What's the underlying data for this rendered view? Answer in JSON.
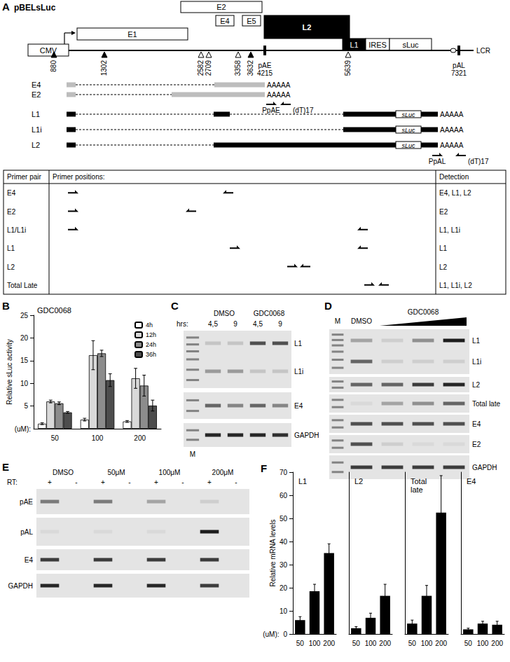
{
  "panel_labels": [
    "A",
    "B",
    "C",
    "D",
    "E",
    "F"
  ],
  "diagram": {
    "title": "pBELsLuc",
    "boxes": [
      "E2",
      "E4",
      "E5",
      "L2",
      "E1",
      "L1",
      "IRES",
      "sLuc",
      "CMV"
    ],
    "end_label": "LCR",
    "sites": [
      {
        "label": "880",
        "kind": "filled"
      },
      {
        "label": "1302",
        "kind": "filled"
      },
      {
        "label": "2582",
        "kind": "open"
      },
      {
        "label": "2709",
        "kind": "open"
      },
      {
        "label": "3358",
        "kind": "open"
      },
      {
        "label": "3632",
        "kind": "filled"
      },
      {
        "name": "pAE",
        "label": "4215",
        "kind": "polyA"
      },
      {
        "label": "5639",
        "kind": "open"
      },
      {
        "name": "pAL",
        "label": "7321",
        "kind": "polyA"
      }
    ],
    "transcripts": [
      {
        "name": "E4",
        "tail": "AAAAA"
      },
      {
        "name": "E2",
        "tail": "AAAAA"
      },
      {
        "name": "L1",
        "tail": "AAAAA",
        "insert": "sLuc"
      },
      {
        "name": "L1i",
        "tail": "AAAAA",
        "insert": "sLuc"
      },
      {
        "name": "L2",
        "tail": "AAAAA",
        "insert": "sLuc"
      }
    ],
    "primers": [
      {
        "labels": [
          "PpAE",
          "(dT)17"
        ]
      },
      {
        "labels": [
          "PpAL",
          "(dT)17"
        ]
      }
    ]
  },
  "primer_table": {
    "header": [
      "Primer pair",
      "Primer positions:",
      "Detection"
    ],
    "rows": [
      {
        "pair": "E4",
        "detection": "E4, L1, L2"
      },
      {
        "pair": "E2",
        "detection": "E2"
      },
      {
        "pair": "L1/L1i",
        "detection": "L1, L1i"
      },
      {
        "pair": "L1",
        "detection": "L1"
      },
      {
        "pair": "L2",
        "detection": "L2"
      },
      {
        "pair": "Total Late",
        "detection": "L1, L1i, L2"
      }
    ]
  },
  "gels": {
    "C": {
      "marker": "M",
      "axis_label": "hrs:",
      "groups": [
        {
          "label": "DMSO",
          "lanes": [
            "4,5",
            "9"
          ]
        },
        {
          "label": "GDC0068",
          "lanes": [
            "4,5",
            "9"
          ]
        }
      ],
      "blocks": [
        {
          "labels": [
            "L1",
            "L1i"
          ],
          "bands": [
            [
              0.15,
              0.15,
              0.7,
              0.7
            ],
            [
              0.35,
              0.35,
              0.15,
              0.15
            ]
          ]
        },
        {
          "labels": [
            "E4"
          ],
          "bands": [
            [
              0.6,
              0.45,
              0.6,
              0.45
            ]
          ]
        },
        {
          "labels": [
            "GAPDH"
          ],
          "bands": [
            [
              0.9,
              0.9,
              0.9,
              0.85
            ]
          ]
        }
      ]
    },
    "D": {
      "marker": "M",
      "groups": [
        {
          "label": "DMSO",
          "span": 1
        },
        {
          "label": "GDC0068",
          "span": 3,
          "wedge": true
        }
      ],
      "blocks": [
        {
          "labels": [
            "L1",
            "L1i"
          ],
          "bands": [
            [
              0.3,
              0.1,
              0.4,
              0.95
            ],
            [
              0.6,
              0.1,
              0.1,
              0.1
            ]
          ]
        },
        {
          "labels": [
            "L2"
          ],
          "bands": [
            [
              0.6,
              0.6,
              0.8,
              0.9
            ]
          ]
        },
        {
          "labels": [
            "Total late"
          ],
          "bands": [
            [
              0.05,
              0.3,
              0.4,
              0.6
            ]
          ]
        },
        {
          "labels": [
            "E4"
          ],
          "bands": [
            [
              0.7,
              0.7,
              0.7,
              0.7
            ]
          ]
        },
        {
          "labels": [
            "E2"
          ],
          "bands": [
            [
              0.7,
              0.1,
              0.05,
              0.05
            ]
          ]
        },
        {
          "labels": [
            "GAPDH"
          ],
          "bands": [
            [
              0.8,
              0.8,
              0.8,
              0.8
            ]
          ]
        }
      ]
    },
    "E": {
      "axis_label": "RT:",
      "groups": [
        {
          "label": "DMSO",
          "lanes": [
            "+",
            "-"
          ]
        },
        {
          "label": "50μM",
          "lanes": [
            "+",
            "-"
          ]
        },
        {
          "label": "100μM",
          "lanes": [
            "+",
            "-"
          ]
        },
        {
          "label": "200μM",
          "lanes": [
            "+",
            "-"
          ]
        }
      ],
      "blocks": [
        {
          "labels": [
            "pAE"
          ],
          "bands": [
            [
              0.5,
              0,
              0.5,
              0,
              0.3,
              0,
              0.1,
              0
            ]
          ]
        },
        {
          "labels": [
            "pAL"
          ],
          "bands": [
            [
              0.05,
              0,
              0.05,
              0,
              0.05,
              0,
              0.95,
              0
            ]
          ]
        },
        {
          "labels": [
            "E4"
          ],
          "bands": [
            [
              0.8,
              0,
              0.8,
              0,
              0.8,
              0,
              0.8,
              0
            ]
          ]
        },
        {
          "labels": [
            "GAPDH"
          ],
          "bands": [
            [
              0.9,
              0,
              0.9,
              0,
              0.9,
              0,
              0.8,
              0
            ]
          ]
        }
      ]
    }
  },
  "chart_data": [
    {
      "type": "bar",
      "title": "GDC0068",
      "y_label": "Relative sLuc activity",
      "x_label": "(uM):",
      "categories": [
        "50",
        "100",
        "200"
      ],
      "series": [
        {
          "name": "4h",
          "color": "#ffffff",
          "values": [
            1.1,
            2.0,
            1.6
          ],
          "errors": [
            0.2,
            0.3,
            0.2
          ]
        },
        {
          "name": "12h",
          "color": "#d9d9d9",
          "values": [
            6.0,
            16.2,
            11.1
          ],
          "errors": [
            0.3,
            3.2,
            2.2
          ]
        },
        {
          "name": "24h",
          "color": "#8c8c8c",
          "values": [
            5.6,
            16.6,
            9.5
          ],
          "errors": [
            0.3,
            0.7,
            2.3
          ]
        },
        {
          "name": "36h",
          "color": "#4d4d4d",
          "values": [
            3.6,
            10.7,
            5.1
          ],
          "errors": [
            0.2,
            1.4,
            1.2
          ]
        }
      ],
      "ylim": [
        0,
        25
      ],
      "yticks": [
        5,
        10,
        15,
        20,
        25
      ],
      "legend": "top-right",
      "grid": false
    },
    {
      "type": "bar",
      "title": "L1",
      "y_label": "Relative mRNA levels",
      "x_label": "(uM):",
      "categories": [
        "50",
        "100",
        "200"
      ],
      "values": [
        6,
        18.5,
        35
      ],
      "errors": [
        1.5,
        3,
        4
      ],
      "color": "#000000",
      "ylim": [
        0,
        70
      ],
      "yticks": [
        0,
        10,
        20,
        30,
        40,
        50,
        60,
        70
      ],
      "grid": false
    },
    {
      "type": "bar",
      "title": "L2",
      "categories": [
        "50",
        "100",
        "200"
      ],
      "values": [
        2.5,
        7,
        16.5
      ],
      "errors": [
        0.7,
        2,
        5
      ],
      "color": "#000000",
      "ylim": [
        0,
        70
      ],
      "yticks": [
        0,
        10,
        20,
        30,
        40,
        50,
        60,
        70
      ],
      "tick_labels": "x",
      "grid": false
    },
    {
      "type": "bar",
      "title": "Total late",
      "categories": [
        "50",
        "100",
        "200"
      ],
      "values": [
        4.5,
        16.5,
        52.5
      ],
      "errors": [
        1.5,
        4.5,
        16
      ],
      "color": "#000000",
      "ylim": [
        0,
        70
      ],
      "yticks": [
        0,
        10,
        20,
        30,
        40,
        50,
        60,
        70
      ],
      "tick_labels": "x",
      "grid": false
    },
    {
      "type": "bar",
      "title": "E4",
      "categories": [
        "50",
        "100",
        "200"
      ],
      "values": [
        2,
        4.5,
        4
      ],
      "errors": [
        0.5,
        1,
        1.5
      ],
      "color": "#000000",
      "ylim": [
        0,
        70
      ],
      "yticks": [
        0,
        10,
        20,
        30,
        40,
        50,
        60,
        70
      ],
      "tick_labels": "x",
      "grid": false
    }
  ]
}
